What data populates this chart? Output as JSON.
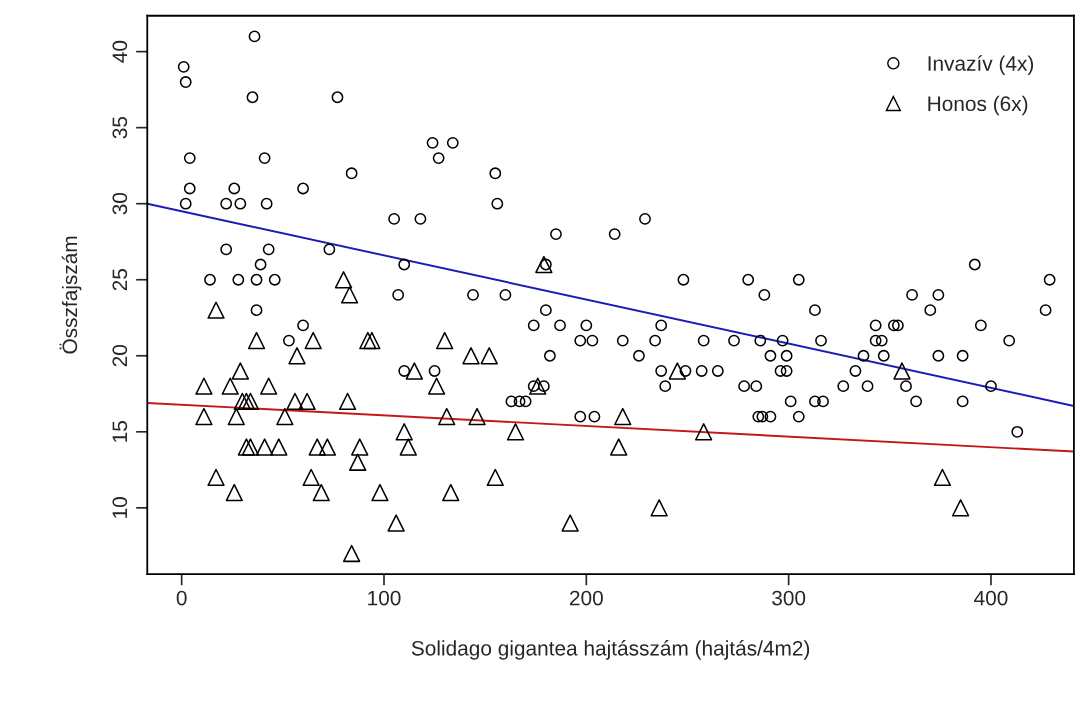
{
  "chart_data": {
    "type": "scatter",
    "xlabel": "Solidago gigantea hajtásszám (hajtás/4m2)",
    "ylabel": "Összfajszám",
    "xlim": [
      -17,
      441
    ],
    "ylim": [
      5.64,
      42.36
    ],
    "xticks": [
      0,
      100,
      200,
      300,
      400
    ],
    "yticks": [
      10,
      15,
      20,
      25,
      30,
      35,
      40
    ],
    "grid": false,
    "legend": "top right",
    "series": [
      {
        "name": "Invazív (4x)",
        "marker": "circle",
        "color": "#000000",
        "x": [
          36,
          1,
          2,
          35,
          77,
          4,
          41,
          84,
          60,
          4,
          26,
          2,
          22,
          29,
          42,
          124,
          134,
          127,
          105,
          118,
          22,
          43,
          73,
          39,
          110,
          14,
          28,
          37,
          46,
          107,
          37,
          60,
          53,
          110,
          125,
          155,
          156,
          229,
          185,
          214,
          180,
          248,
          280,
          144,
          160,
          180,
          174,
          187,
          200,
          237,
          197,
          203,
          218,
          234,
          258,
          273,
          286,
          182,
          226,
          237,
          249,
          257,
          265,
          239,
          278,
          284,
          174,
          179,
          163,
          167,
          170,
          197,
          204,
          285,
          288,
          305,
          392,
          429,
          361,
          374,
          313,
          370,
          427,
          343,
          352,
          354,
          395,
          297,
          316,
          343,
          346,
          409,
          291,
          299,
          337,
          347,
          374,
          386,
          296,
          299,
          333,
          327,
          339,
          358,
          400,
          301,
          313,
          317,
          363,
          386,
          287,
          291,
          305,
          413
        ],
        "values": [
          41,
          39,
          38,
          37,
          37,
          33,
          33,
          32,
          31,
          31,
          31,
          30,
          30,
          30,
          30,
          34,
          34,
          33,
          29,
          29,
          27,
          27,
          27,
          26,
          26,
          25,
          25,
          25,
          25,
          24,
          23,
          22,
          21,
          19,
          19,
          32,
          30,
          29,
          28,
          28,
          26,
          25,
          25,
          24,
          24,
          23,
          22,
          22,
          22,
          22,
          21,
          21,
          21,
          21,
          21,
          21,
          21,
          20,
          20,
          19,
          19,
          19,
          19,
          18,
          18,
          18,
          18,
          18,
          17,
          17,
          17,
          16,
          16,
          16,
          24,
          25,
          26,
          25,
          24,
          24,
          23,
          23,
          23,
          22,
          22,
          22,
          22,
          21,
          21,
          21,
          21,
          21,
          20,
          20,
          20,
          20,
          20,
          20,
          19,
          19,
          19,
          18,
          18,
          18,
          18,
          17,
          17,
          17,
          17,
          17,
          16,
          16,
          16,
          15
        ]
      },
      {
        "name": "Honos (6x)",
        "marker": "triangle",
        "color": "#000000",
        "x": [
          80,
          83,
          17,
          37,
          65,
          92,
          94,
          130,
          57,
          115,
          29,
          126,
          11,
          24,
          43,
          30,
          32,
          34,
          56,
          62,
          82,
          11,
          27,
          51,
          131,
          110,
          32,
          34,
          41,
          48,
          67,
          72,
          88,
          112,
          87,
          17,
          64,
          26,
          69,
          98,
          133,
          106,
          84,
          143,
          152,
          176,
          146,
          218,
          165,
          258,
          216,
          155,
          236,
          192,
          179,
          245,
          356,
          376,
          385
        ],
        "values": [
          25,
          24,
          23,
          21,
          21,
          21,
          21,
          21,
          20,
          19,
          19,
          18,
          18,
          18,
          18,
          17,
          17,
          17,
          17,
          17,
          17,
          16,
          16,
          16,
          16,
          15,
          14,
          14,
          14,
          14,
          14,
          14,
          14,
          14,
          13,
          12,
          12,
          11,
          11,
          11,
          11,
          9,
          7,
          20,
          20,
          18,
          16,
          16,
          15,
          15,
          14,
          12,
          10,
          9,
          26,
          19,
          19,
          12,
          10
        ]
      },
      {
        "type": "line",
        "color": "#1c1cb4",
        "x": [
          -17,
          441
        ],
        "values": [
          30.0,
          16.7
        ]
      },
      {
        "type": "line",
        "color": "#c41818",
        "x": [
          -17,
          441
        ],
        "values": [
          16.9,
          13.7
        ]
      }
    ]
  }
}
